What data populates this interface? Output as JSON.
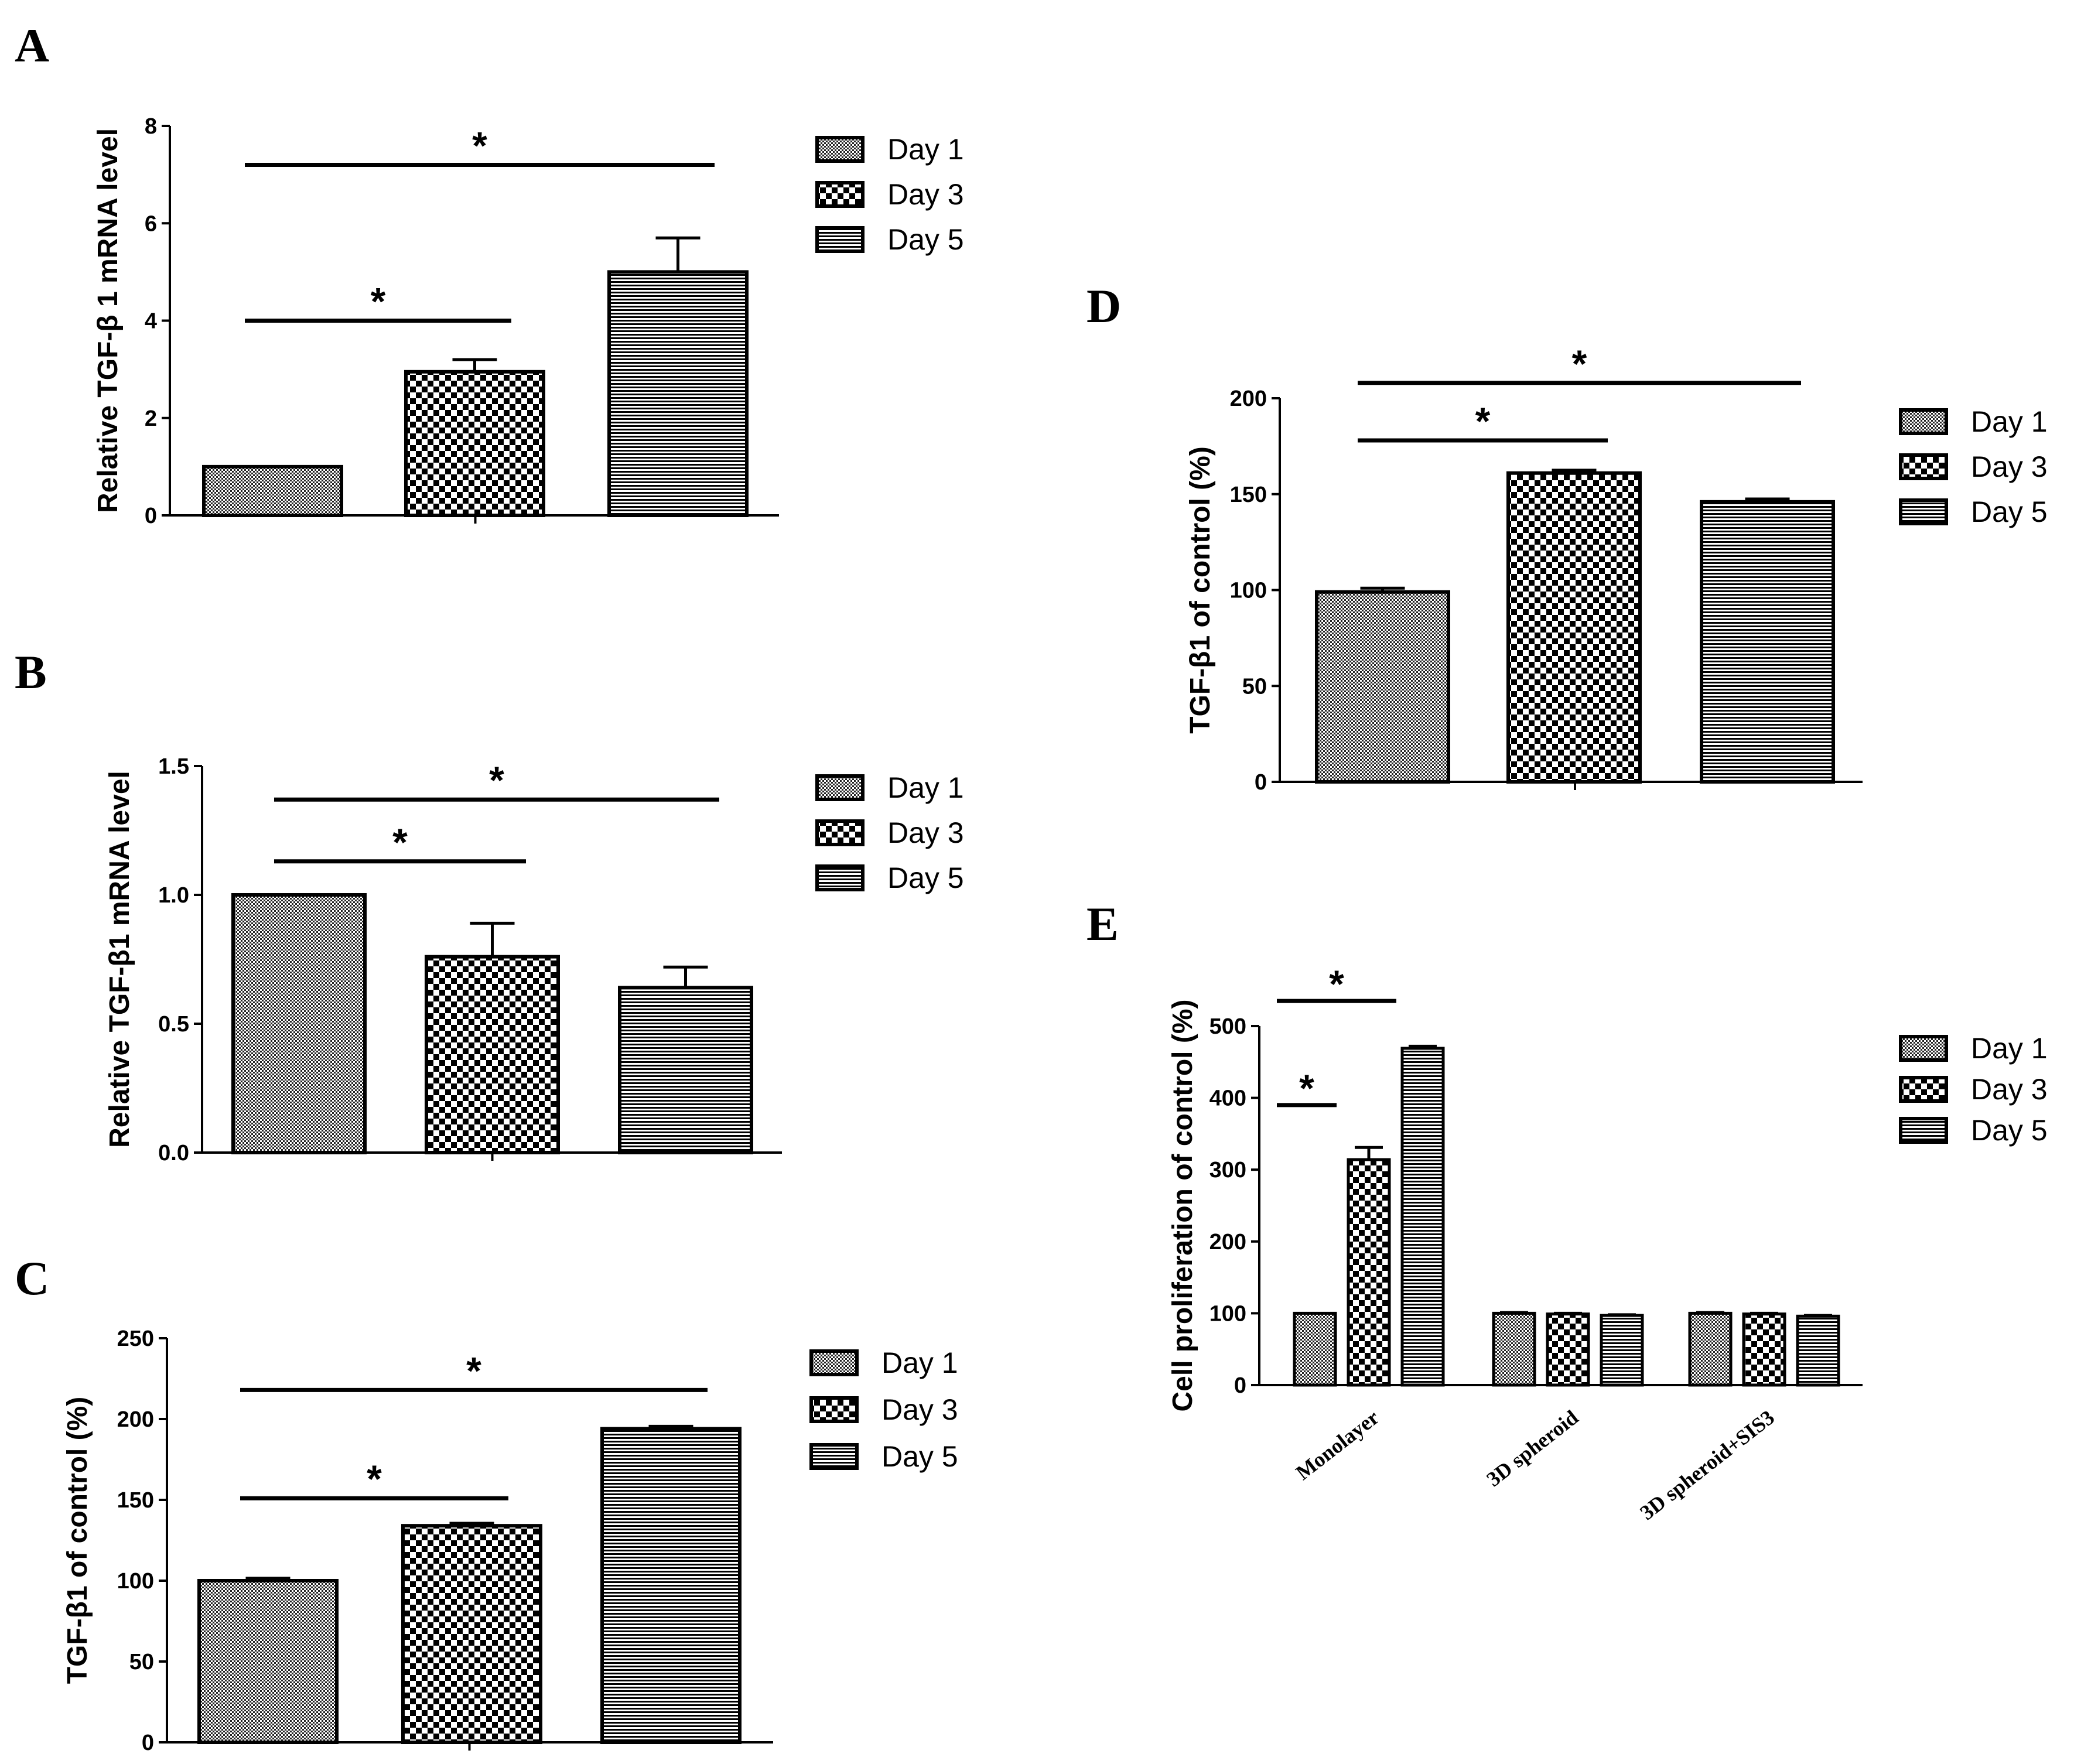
{
  "legend_labels": [
    "Day 1",
    "Day 3",
    "Day 5"
  ],
  "chart_data": [
    {
      "panel": "A",
      "type": "bar",
      "ylabel": "Relative TGF-β 1 mRNA level",
      "ylim": [
        0,
        8
      ],
      "yticks": [
        "0",
        "2",
        "4",
        "6",
        "8"
      ],
      "series": [
        {
          "name": "Day 1",
          "value": 1.0,
          "error": 0
        },
        {
          "name": "Day 3",
          "value": 2.95,
          "error": 0.25
        },
        {
          "name": "Day 5",
          "value": 5.0,
          "error": 0.7
        }
      ],
      "significance": [
        {
          "from": 0,
          "to": 1,
          "level": 4.0,
          "label": "*"
        },
        {
          "from": 0,
          "to": 2,
          "level": 7.2,
          "label": "*"
        }
      ]
    },
    {
      "panel": "B",
      "type": "bar",
      "ylabel": "Relative TGF-β1 mRNA level",
      "ylim": [
        0,
        1.5
      ],
      "yticks": [
        "0.0",
        "0.5",
        "1.0",
        "1.5"
      ],
      "series": [
        {
          "name": "Day 1",
          "value": 1.0,
          "error": 0
        },
        {
          "name": "Day 3",
          "value": 0.76,
          "error": 0.13
        },
        {
          "name": "Day 5",
          "value": 0.64,
          "error": 0.08
        }
      ],
      "significance": [
        {
          "from": 0,
          "to": 1,
          "level": 1.13,
          "label": "*"
        },
        {
          "from": 0,
          "to": 2,
          "level": 1.37,
          "label": "*"
        }
      ]
    },
    {
      "panel": "C",
      "type": "bar",
      "ylabel": "TGF-β1 of control (%)",
      "ylim": [
        0,
        250
      ],
      "yticks": [
        "0",
        "50",
        "100",
        "150",
        "200",
        "250"
      ],
      "series": [
        {
          "name": "Day 1",
          "value": 100,
          "error": 1.5
        },
        {
          "name": "Day 3",
          "value": 134,
          "error": 1.5
        },
        {
          "name": "Day 5",
          "value": 194,
          "error": 1.5
        }
      ],
      "significance": [
        {
          "from": 0,
          "to": 1,
          "level": 151,
          "label": "*"
        },
        {
          "from": 0,
          "to": 2,
          "level": 218,
          "label": "*"
        }
      ]
    },
    {
      "panel": "D",
      "type": "bar",
      "ylabel": "TGF-β1 of control (%)",
      "ylim": [
        0,
        200
      ],
      "yticks": [
        "0",
        "50",
        "100",
        "150",
        "200"
      ],
      "series": [
        {
          "name": "Day 1",
          "value": 99,
          "error": 2
        },
        {
          "name": "Day 3",
          "value": 161,
          "error": 1.5
        },
        {
          "name": "Day 5",
          "value": 146,
          "error": 1.5
        }
      ],
      "significance": [
        {
          "from": 0,
          "to": 1,
          "level": 178,
          "label": "*"
        },
        {
          "from": 0,
          "to": 2,
          "level": 208,
          "label": "*"
        }
      ]
    },
    {
      "panel": "E",
      "type": "bar",
      "ylabel": "Cell proliferation of control (%)",
      "ylim": [
        0,
        500
      ],
      "yticks": [
        "0",
        "100",
        "200",
        "300",
        "400",
        "500"
      ],
      "categories": [
        "Monolayer",
        "3D spheroid",
        "3D spheroid+SIS3"
      ],
      "series": [
        {
          "name": "Day 1",
          "values": [
            100,
            100,
            100
          ],
          "errors": [
            0,
            1,
            1
          ]
        },
        {
          "name": "Day 3",
          "values": [
            314,
            99,
            99
          ],
          "errors": [
            17,
            1,
            1
          ]
        },
        {
          "name": "Day 5",
          "values": [
            469,
            97,
            96
          ],
          "errors": [
            3,
            1,
            1
          ]
        }
      ],
      "significance": [
        {
          "from": 0,
          "to": 1,
          "level": 390,
          "label": "*"
        },
        {
          "from": 0,
          "to": 2,
          "level": 535,
          "label": "*"
        }
      ]
    }
  ]
}
